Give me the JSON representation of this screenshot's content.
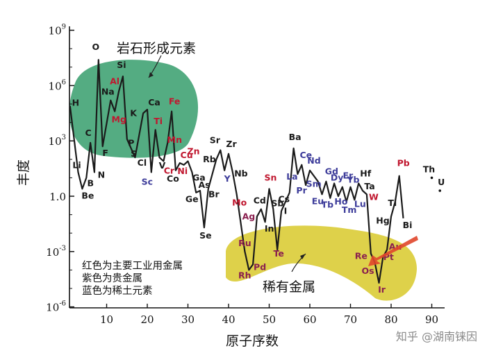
{
  "chart_data": {
    "type": "line",
    "xlabel": "原子序数",
    "ylabel": "丰度",
    "xlim": [
      0,
      95
    ],
    "ylim_log10": [
      -6,
      9
    ],
    "log_scale_y": true,
    "x_ticks": [
      "10",
      "20",
      "30",
      "40",
      "50",
      "60",
      "70",
      "80",
      "90"
    ],
    "y_ticks": [
      {
        "base": "10",
        "exp": "9"
      },
      {
        "base": "10",
        "exp": "6"
      },
      {
        "base": "10",
        "exp": "3"
      },
      {
        "base": "10",
        "exp": "0",
        "label": "1.0"
      },
      {
        "base": "10",
        "exp": "-3"
      },
      {
        "base": "10",
        "exp": "-6"
      }
    ],
    "series_log10_abundance": [
      {
        "el": "H",
        "z": 1,
        "log": 4.9
      },
      {
        "el": "Li",
        "z": 3,
        "log": 1.3
      },
      {
        "el": "Be",
        "z": 4,
        "log": 0.4
      },
      {
        "el": "B",
        "z": 5,
        "log": 1.0
      },
      {
        "el": "C",
        "z": 6,
        "log": 2.9
      },
      {
        "el": "N",
        "z": 7,
        "log": 1.3
      },
      {
        "el": "O",
        "z": 8,
        "log": 7.4
      },
      {
        "el": "F",
        "z": 9,
        "log": 2.7
      },
      {
        "el": "Na",
        "z": 11,
        "log": 5.2
      },
      {
        "el": "Mg",
        "z": 12,
        "log": 4.6
      },
      {
        "el": "Al",
        "z": 13,
        "log": 5.7
      },
      {
        "el": "Si",
        "z": 14,
        "log": 6.5
      },
      {
        "el": "P",
        "z": 15,
        "log": 3.1
      },
      {
        "el": "S",
        "z": 16,
        "log": 2.6
      },
      {
        "el": "Cl",
        "z": 17,
        "log": 2.1
      },
      {
        "el": "K",
        "z": 19,
        "log": 4.5
      },
      {
        "el": "Ca",
        "z": 20,
        "log": 4.7
      },
      {
        "el": "Sc",
        "z": 21,
        "log": 1.3
      },
      {
        "el": "Ti",
        "z": 22,
        "log": 3.6
      },
      {
        "el": "V",
        "z": 23,
        "log": 2.1
      },
      {
        "el": "Cr",
        "z": 24,
        "log": 1.9
      },
      {
        "el": "Mn",
        "z": 25,
        "log": 2.9
      },
      {
        "el": "Fe",
        "z": 26,
        "log": 4.6
      },
      {
        "el": "Co",
        "z": 27,
        "log": 1.4
      },
      {
        "el": "Ni",
        "z": 28,
        "log": 1.8
      },
      {
        "el": "Cu",
        "z": 29,
        "log": 1.7
      },
      {
        "el": "Zn",
        "z": 30,
        "log": 1.9
      },
      {
        "el": "Ga",
        "z": 31,
        "log": 1.3
      },
      {
        "el": "Ge",
        "z": 32,
        "log": 0.2
      },
      {
        "el": "As",
        "z": 33,
        "log": 0.3
      },
      {
        "el": "Se",
        "z": 34,
        "log": -1.7
      },
      {
        "el": "Br",
        "z": 35,
        "log": 0.4
      },
      {
        "el": "Rb",
        "z": 37,
        "log": 2.0
      },
      {
        "el": "Sr",
        "z": 38,
        "log": 2.5
      },
      {
        "el": "Y",
        "z": 39,
        "log": 1.4
      },
      {
        "el": "Zr",
        "z": 40,
        "log": 2.3
      },
      {
        "el": "Nb",
        "z": 41,
        "log": 1.3
      },
      {
        "el": "Mo",
        "z": 42,
        "log": 0.1
      },
      {
        "el": "Ru",
        "z": 44,
        "log": -3.0
      },
      {
        "el": "Rh",
        "z": 45,
        "log": -4.0
      },
      {
        "el": "Pd",
        "z": 46,
        "log": -3.7
      },
      {
        "el": "Ag",
        "z": 47,
        "log": -1.1
      },
      {
        "el": "Cd",
        "z": 48,
        "log": -0.7
      },
      {
        "el": "In",
        "z": 49,
        "log": -1.4
      },
      {
        "el": "Sn",
        "z": 50,
        "log": 0.4
      },
      {
        "el": "Sb",
        "z": 51,
        "log": -0.7
      },
      {
        "el": "Te",
        "z": 52,
        "log": -2.9
      },
      {
        "el": "I",
        "z": 53,
        "log": -0.8
      },
      {
        "el": "Cs",
        "z": 55,
        "log": 0.2
      },
      {
        "el": "Ba",
        "z": 56,
        "log": 2.6
      },
      {
        "el": "La",
        "z": 57,
        "log": 1.2
      },
      {
        "el": "Ce",
        "z": 58,
        "log": 1.7
      },
      {
        "el": "Pr",
        "z": 59,
        "log": 0.6
      },
      {
        "el": "Nd",
        "z": 60,
        "log": 1.4
      },
      {
        "el": "Sm",
        "z": 62,
        "log": 0.8
      },
      {
        "el": "Eu",
        "z": 63,
        "log": 0.1
      },
      {
        "el": "Gd",
        "z": 64,
        "log": 0.8
      },
      {
        "el": "Tb",
        "z": 65,
        "log": -0.1
      },
      {
        "el": "Dy",
        "z": 66,
        "log": 0.7
      },
      {
        "el": "Ho",
        "z": 67,
        "log": 0.0
      },
      {
        "el": "Er",
        "z": 68,
        "log": 0.5
      },
      {
        "el": "Tm",
        "z": 69,
        "log": -0.3
      },
      {
        "el": "Yb",
        "z": 70,
        "log": 0.5
      },
      {
        "el": "Lu",
        "z": 71,
        "log": -0.2
      },
      {
        "el": "Hf",
        "z": 72,
        "log": 0.7
      },
      {
        "el": "Ta",
        "z": 73,
        "log": 0.3
      },
      {
        "el": "W",
        "z": 74,
        "log": 0.1
      },
      {
        "el": "Re",
        "z": 75,
        "log": -3.1
      },
      {
        "el": "Os",
        "z": 76,
        "log": -3.6
      },
      {
        "el": "Ir",
        "z": 77,
        "log": -4.7
      },
      {
        "el": "Pt",
        "z": 78,
        "log": -3.3
      },
      {
        "el": "Au",
        "z": 79,
        "log": -2.9
      },
      {
        "el": "Hg",
        "z": 80,
        "log": -1.1
      },
      {
        "el": "Tl",
        "z": 81,
        "log": -0.3
      },
      {
        "el": "Pb",
        "z": 82,
        "log": 1.1
      },
      {
        "el": "Bi",
        "z": 83,
        "log": -1.2
      },
      {
        "el": "Th",
        "z": 90,
        "log": 1.0,
        "unconnected": true
      },
      {
        "el": "U",
        "z": 92,
        "log": 0.3,
        "unconnected": true
      }
    ],
    "label_groups": {
      "red": [
        "Al",
        "Mg",
        "Ti",
        "Cr",
        "Mn",
        "Fe",
        "Cu",
        "Ni",
        "Zn",
        "Sn",
        "Mo",
        "W",
        "Pb"
      ],
      "purple": [
        "Ru",
        "Rh",
        "Pd",
        "Ag",
        "Te",
        "Re",
        "Os",
        "Ir",
        "Pt",
        "Au"
      ],
      "blue": [
        "Sc",
        "Y",
        "La",
        "Ce",
        "Pr",
        "Nd",
        "Sm",
        "Eu",
        "Gd",
        "Tb",
        "Dy",
        "Ho",
        "Er",
        "Tm",
        "Yb",
        "Lu"
      ]
    },
    "annotations": {
      "rock_forming": "岩石形成元素",
      "rare_metals": "稀有金属",
      "legend": [
        "红色为主要工业用金属",
        "紫色为贵金属",
        "蓝色为稀土元素"
      ]
    }
  },
  "colors": {
    "red": "#c0172f",
    "purple": "#8a1f4f",
    "blue": "#3d3c9a",
    "black": "#1a1a1a",
    "green_region": "#2e9a66",
    "yellow_region": "#d8c92a",
    "arrow": "#e0462b"
  },
  "watermark": "知乎 @湖南铼因"
}
